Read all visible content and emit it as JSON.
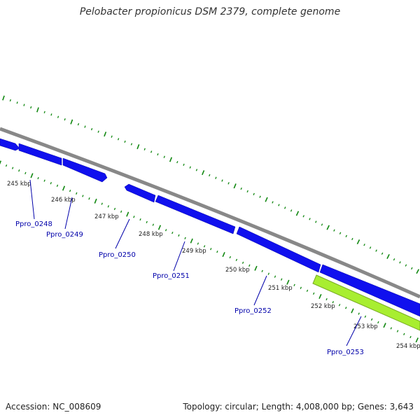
{
  "title": "Pelobacter propionicus DSM 2379, complete genome",
  "footer": {
    "accession": "Accession: NC_008609",
    "summary": "Topology: circular; Length: 4,008,000 bp; Genes: 3,643"
  },
  "colors": {
    "gene": "#1010ee",
    "gene_highlight": "#a8ee30",
    "backbone": "#888888",
    "tick": "#118811",
    "label": "#0000aa"
  },
  "kbp_labels": [
    "245 kbp",
    "246 kbp",
    "247 kbp",
    "248 kbp",
    "249 kbp",
    "250 kbp",
    "251 kbp",
    "252 kbp",
    "253 kbp",
    "254 kbp"
  ],
  "genes": [
    {
      "name": "Ppro_0248"
    },
    {
      "name": "Ppro_0249"
    },
    {
      "name": "Ppro_0250"
    },
    {
      "name": "Ppro_0251"
    },
    {
      "name": "Ppro_0252"
    },
    {
      "name": "Ppro_0253"
    }
  ]
}
